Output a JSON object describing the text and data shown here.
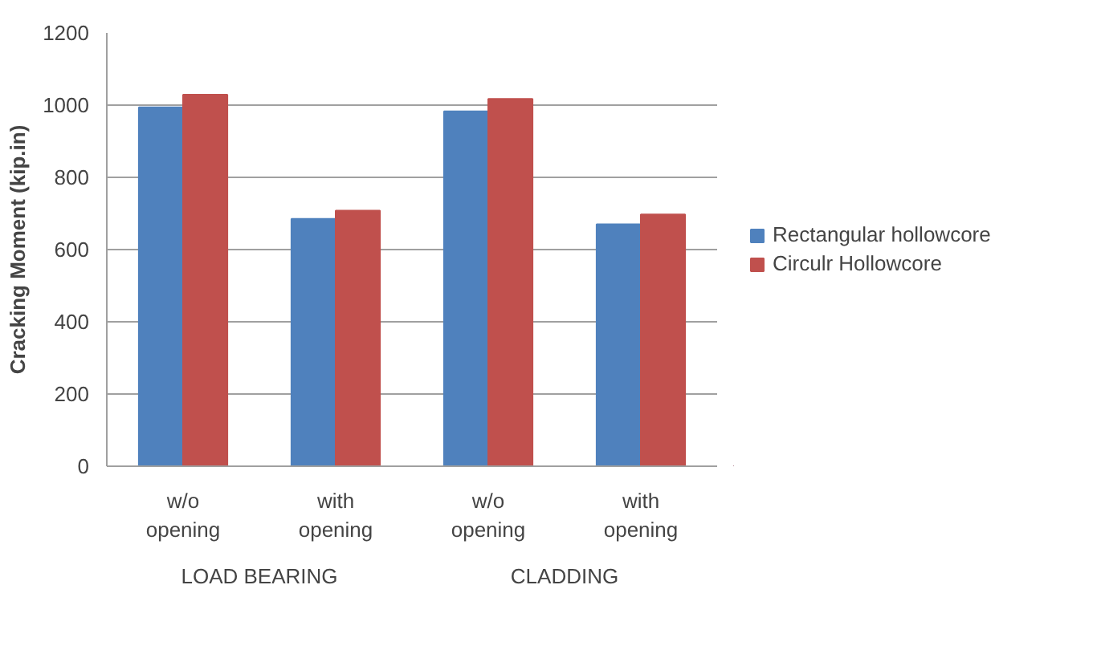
{
  "chart_data": {
    "type": "bar",
    "ylabel": "Cracking Moment (kip.in)",
    "categories": [
      "w/o opening",
      "with opening",
      "w/o opening",
      "with opening"
    ],
    "series": [
      {
        "name": "Rectangular hollowcore",
        "color": "#4f81bd",
        "values": [
          994,
          685,
          983,
          670
        ]
      },
      {
        "name": "Circulr Hollowcore",
        "color": "#c0504d",
        "values": [
          1029,
          708,
          1017,
          697
        ]
      }
    ],
    "annotations": [
      "LOAD BEARING",
      "CLADDING"
    ],
    "ylim": [
      0,
      1200
    ],
    "yticks": [
      0,
      200,
      400,
      600,
      800,
      1000,
      1200
    ],
    "grid": "y",
    "legend": "right"
  }
}
